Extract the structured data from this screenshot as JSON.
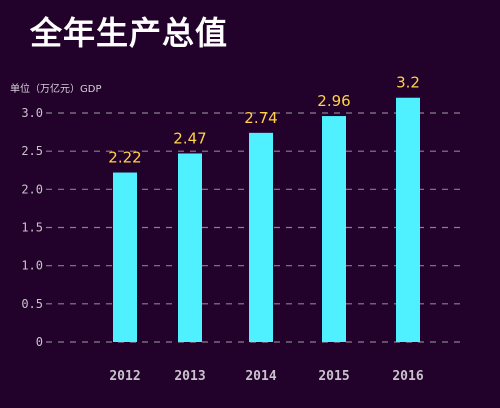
{
  "title": "全年生产总值",
  "unit_label": "单位（万亿元）GDP",
  "colors": {
    "background": "#22012a",
    "bar": "#4ff0ff",
    "label": "#ffd24a",
    "grid": "#8a7f8e"
  },
  "chart_data": {
    "type": "bar",
    "categories": [
      "2012",
      "2013",
      "2014",
      "2015",
      "2016"
    ],
    "values": [
      2.22,
      2.47,
      2.74,
      2.96,
      3.2
    ],
    "data_labels": [
      "2.22",
      "2.47",
      "2.74",
      "2.96",
      "3.2"
    ],
    "yticks": [
      "0",
      "0.5",
      "1.0",
      "1.5",
      "2.0",
      "2.5",
      "3.0"
    ],
    "ylim": [
      0,
      3.0
    ],
    "grid": "dashed horizontal",
    "title": "全年生产总值",
    "ylabel": "单位（万亿元）GDP"
  }
}
